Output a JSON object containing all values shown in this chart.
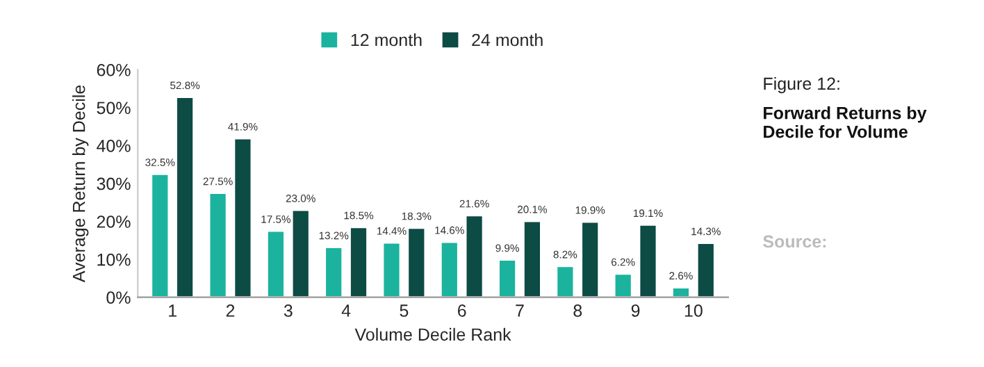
{
  "chart_data": {
    "type": "bar",
    "title": "Forward Returns by Decile for Volume",
    "subtitle": "Figure 12:",
    "xlabel": "Volume Decile Rank",
    "ylabel": "Average Return by Decile",
    "categories": [
      "1",
      "2",
      "3",
      "4",
      "5",
      "6",
      "7",
      "8",
      "9",
      "10"
    ],
    "series": [
      {
        "name": "12 month",
        "color": "#1bb39e",
        "values": [
          32.5,
          27.5,
          17.5,
          13.2,
          14.4,
          14.6,
          9.9,
          8.2,
          6.2,
          2.6
        ],
        "value_labels": [
          "32.5%",
          "27.5%",
          "17.5%",
          "13.2%",
          "14.4%",
          "14.6%",
          "9.9%",
          "8.2%",
          "6.2%",
          "2.6%"
        ]
      },
      {
        "name": "24 month",
        "color": "#0d4b45",
        "values": [
          52.8,
          41.9,
          23.0,
          18.5,
          18.3,
          21.6,
          20.1,
          19.9,
          19.1,
          14.3
        ],
        "value_labels": [
          "52.8%",
          "41.9%",
          "23.0%",
          "18.5%",
          "18.3%",
          "21.6%",
          "20.1%",
          "19.9%",
          "19.1%",
          "14.3%"
        ]
      }
    ],
    "ylim": [
      0,
      60
    ],
    "yticks": [
      {
        "value": 0,
        "label": "0%"
      },
      {
        "value": 10,
        "label": "10%"
      },
      {
        "value": 20,
        "label": "20%"
      },
      {
        "value": 30,
        "label": "30%"
      },
      {
        "value": 40,
        "label": "40%"
      },
      {
        "value": 50,
        "label": "50%"
      },
      {
        "value": 60,
        "label": "60%"
      }
    ],
    "grid": false,
    "legend": "top",
    "annotations": [
      "Source:"
    ]
  }
}
